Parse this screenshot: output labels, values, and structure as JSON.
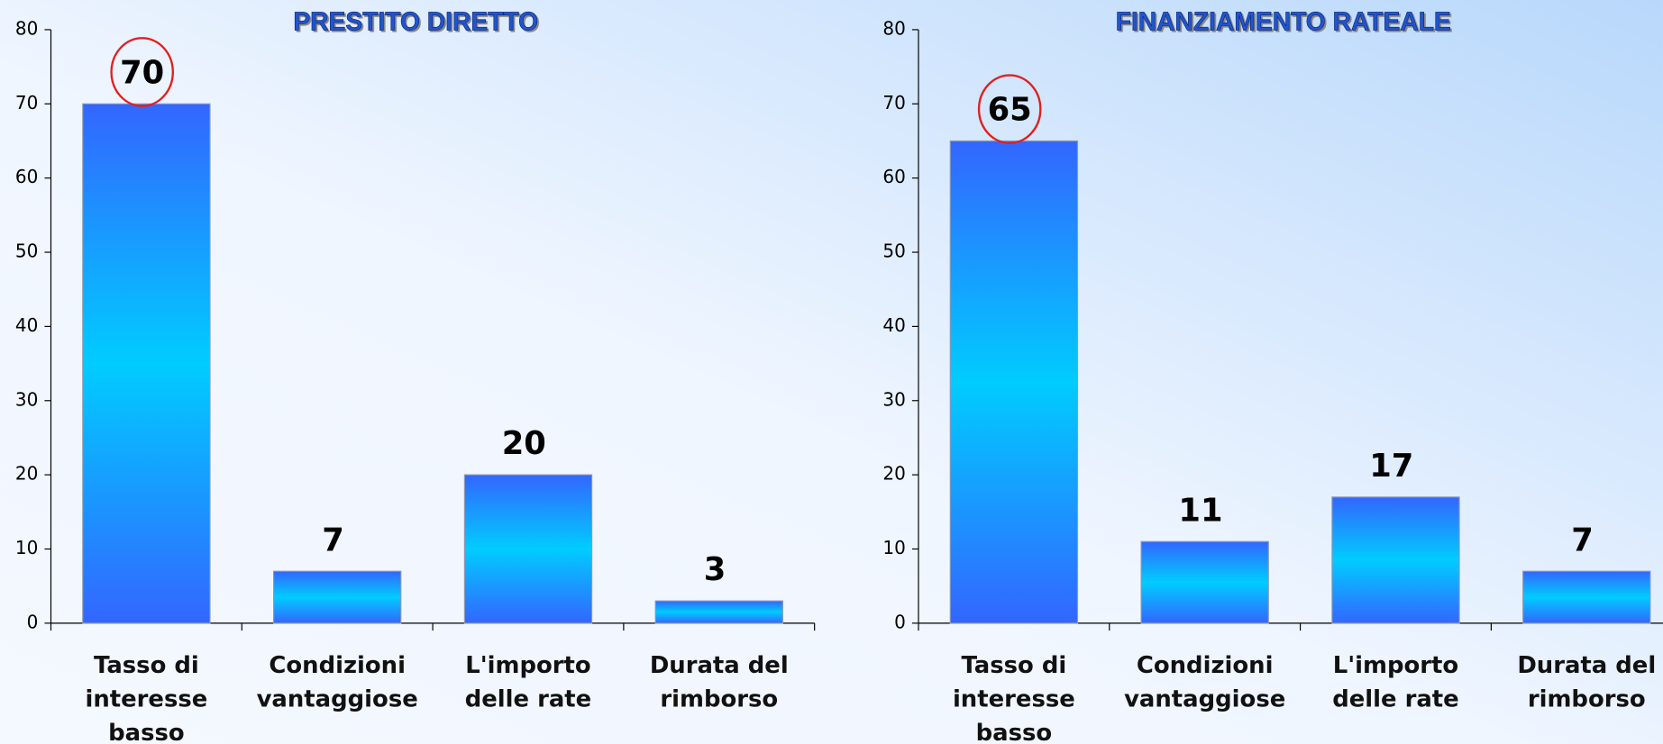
{
  "chart_data": [
    {
      "type": "bar",
      "title": "PRESTITO DIRETTO",
      "categories": [
        "Tasso di interesse basso",
        "Condizioni vantaggiose",
        "L'importo delle rate",
        "Durata del rimborso"
      ],
      "values": [
        70,
        7,
        20,
        3
      ],
      "ylim": [
        0,
        80
      ],
      "yticks": [
        0,
        10,
        20,
        30,
        40,
        50,
        60,
        70,
        80
      ]
    },
    {
      "type": "bar",
      "title": "FINANZIAMENTO RATEALE",
      "categories": [
        "Tasso di interesse basso",
        "Condizioni vantaggiose",
        "L'importo delle rate",
        "Durata del rimborso"
      ],
      "values": [
        65,
        11,
        17,
        7
      ],
      "ylim": [
        0,
        80
      ],
      "yticks": [
        0,
        10,
        20,
        30,
        40,
        50,
        60,
        70,
        80
      ]
    }
  ]
}
